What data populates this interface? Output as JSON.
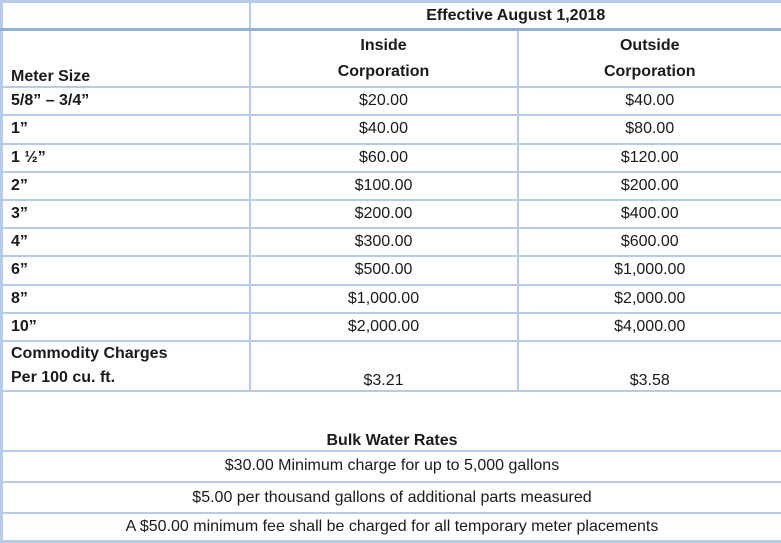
{
  "colors": {
    "border_light": "#b8cbe4",
    "border_dark": "#95afd3",
    "text": "#1a1a1a",
    "background": "#ffffff"
  },
  "header": {
    "effective": "Effective August 1,2018",
    "meter_size": "Meter Size",
    "inside_line1": "Inside",
    "inside_line2": "Corporation",
    "outside_line1": "Outside",
    "outside_line2": "Corporation"
  },
  "rows": [
    {
      "size": "5/8” – 3/4”",
      "inside": "$20.00",
      "outside": "$40.00"
    },
    {
      "size": "1”",
      "inside": "$40.00",
      "outside": "$80.00"
    },
    {
      "size": "1 ½”",
      "inside": "$60.00",
      "outside": "$120.00"
    },
    {
      "size": "2”",
      "inside": "$100.00",
      "outside": "$200.00"
    },
    {
      "size": "3”",
      "inside": "$200.00",
      "outside": "$400.00"
    },
    {
      "size": "4”",
      "inside": "$300.00",
      "outside": "$600.00"
    },
    {
      "size": "6”",
      "inside": "$500.00",
      "outside": "$1,000.00"
    },
    {
      "size": "8”",
      "inside": "$1,000.00",
      "outside": "$2,000.00"
    },
    {
      "size": "10”",
      "inside": "$2,000.00",
      "outside": "$4,000.00"
    }
  ],
  "commodity": {
    "label_line1": "Commodity Charges",
    "label_line2": "Per 100 cu. ft.",
    "inside": "$3.21",
    "outside": "$3.58"
  },
  "bulk": {
    "title": "Bulk Water Rates",
    "lines": [
      "$30.00 Minimum charge for up to 5,000 gallons",
      "$5.00 per thousand gallons of additional parts measured",
      "A $50.00 minimum fee shall be charged for all temporary meter placements"
    ]
  }
}
